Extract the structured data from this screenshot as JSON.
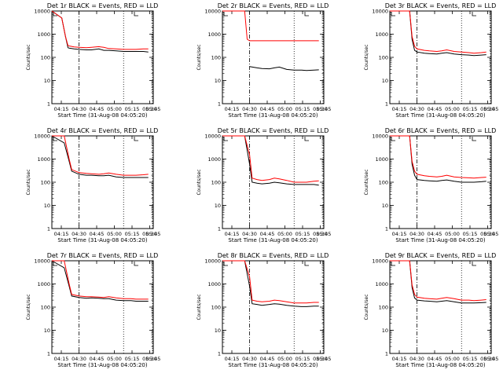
{
  "chart_data": [
    {
      "type": "line",
      "title": "Det 1r BLACK = Events, RED = LLD",
      "xlabel": "Start Time (31-Aug-08 04:05:20)",
      "ylabel": "Counts/sec",
      "yscale": "log",
      "ylim": [
        1,
        10000
      ],
      "ytick_labels": [
        "1",
        "10",
        "100",
        "1000",
        "10000"
      ],
      "xtick_labels": [
        "04:15",
        "04:30",
        "04:45",
        "05:00",
        "05:15",
        "05:30",
        "05:45"
      ],
      "xrange_minutes": [
        4,
        45
      ],
      "markers": {
        "dashdot": 15,
        "dotted": [
          33,
          45
        ]
      },
      "series": [
        {
          "color": "#000000",
          "spike": [
            4,
            10000,
            8,
            5000,
            9.5,
            800,
            10.5,
            260
          ],
          "x": [
            11,
            13,
            15,
            18,
            20,
            23,
            25,
            27,
            30,
            33,
            36,
            38,
            41,
            43
          ],
          "y": [
            250,
            230,
            220,
            210,
            210,
            230,
            200,
            200,
            190,
            180,
            180,
            180,
            180,
            170
          ]
        },
        {
          "color": "#ff0000",
          "spike": [
            4,
            10000,
            8,
            5000,
            9.5,
            800,
            10.5,
            320
          ],
          "x": [
            11,
            13,
            15,
            18,
            20,
            23,
            25,
            27,
            30,
            33,
            36,
            38,
            41,
            43
          ],
          "y": [
            310,
            280,
            270,
            260,
            270,
            290,
            270,
            240,
            230,
            220,
            220,
            220,
            230,
            230
          ]
        }
      ]
    },
    {
      "type": "line",
      "title": "Det 2r BLACK = Events, RED = LLD",
      "xlabel": "Start Time (31-Aug-08 04:05:20)",
      "ylabel": "Counts/sec",
      "yscale": "log",
      "ylim": [
        1,
        10000
      ],
      "ytick_labels": [
        "1",
        "10",
        "100",
        "1000",
        "10000"
      ],
      "xtick_labels": [
        "04:15",
        "04:30",
        "04:45",
        "05:00",
        "05:15",
        "05:30",
        "05:45"
      ],
      "xrange_minutes": [
        4,
        45
      ],
      "markers": {
        "dashdot": 15,
        "dotted": [
          33,
          45
        ]
      },
      "series": [
        {
          "color": "#000000",
          "spike": [],
          "x": [
            15,
            18,
            20,
            23,
            25,
            27,
            30,
            33,
            36,
            38,
            41,
            43
          ],
          "y": [
            40,
            35,
            33,
            32,
            35,
            38,
            30,
            28,
            28,
            27,
            28,
            29
          ]
        },
        {
          "color": "#ff0000",
          "spike": [
            4,
            10000,
            12,
            10000,
            13,
            10000,
            14,
            600
          ],
          "x": [
            15,
            18,
            20,
            23,
            25,
            27,
            30,
            33,
            36,
            38,
            41,
            43
          ],
          "y": [
            520,
            520,
            520,
            520,
            520,
            520,
            520,
            520,
            520,
            520,
            520,
            520
          ]
        }
      ]
    },
    {
      "type": "line",
      "title": "Det 3r BLACK = Events, RED = LLD",
      "xlabel": "Start Time (31-Aug-08 04:05:20)",
      "ylabel": "Counts/sec",
      "yscale": "log",
      "ylim": [
        1,
        10000
      ],
      "ytick_labels": [
        "1",
        "10",
        "100",
        "1000",
        "10000"
      ],
      "xtick_labels": [
        "04:15",
        "04:30",
        "04:45",
        "05:00",
        "05:15",
        "05:30",
        "05:45"
      ],
      "xrange_minutes": [
        4,
        45
      ],
      "markers": {
        "dashdot": 15,
        "dotted": [
          33,
          45
        ]
      },
      "series": [
        {
          "color": "#000000",
          "spike": [
            4,
            10000,
            10,
            10000,
            12,
            10000,
            13,
            600,
            14,
            200
          ],
          "x": [
            15,
            18,
            20,
            23,
            25,
            27,
            30,
            33,
            36,
            38,
            41,
            43
          ],
          "y": [
            170,
            150,
            145,
            140,
            150,
            160,
            140,
            130,
            125,
            120,
            125,
            130
          ]
        },
        {
          "color": "#ff0000",
          "spike": [
            4,
            10000,
            10,
            10000,
            12,
            10000,
            13,
            800,
            14,
            300
          ],
          "x": [
            15,
            18,
            20,
            23,
            25,
            27,
            30,
            33,
            36,
            38,
            41,
            43
          ],
          "y": [
            230,
            200,
            190,
            180,
            190,
            210,
            180,
            170,
            160,
            150,
            160,
            170
          ]
        }
      ]
    },
    {
      "type": "line",
      "title": "Det 4r BLACK = Events, RED = LLD",
      "xlabel": "Start Time (31-Aug-08 04:05:20)",
      "ylabel": "Counts/sec",
      "yscale": "log",
      "ylim": [
        1,
        10000
      ],
      "ytick_labels": [
        "1",
        "10",
        "100",
        "1000",
        "10000"
      ],
      "xtick_labels": [
        "04:15",
        "04:30",
        "04:45",
        "05:00",
        "05:15",
        "05:30",
        "05:45"
      ],
      "xrange_minutes": [
        4,
        45
      ],
      "markers": {
        "dashdot": 15,
        "dotted": [
          33,
          45
        ]
      },
      "series": [
        {
          "color": "#000000",
          "spike": [
            4,
            10000,
            9,
            5000,
            11,
            800,
            12,
            300
          ],
          "x": [
            15,
            18,
            20,
            23,
            25,
            27,
            30,
            33,
            36,
            38,
            41,
            43
          ],
          "y": [
            220,
            200,
            200,
            190,
            190,
            200,
            170,
            160,
            160,
            160,
            160,
            160
          ]
        },
        {
          "color": "#ff0000",
          "spike": [
            4,
            10000,
            9,
            10000,
            11,
            1000,
            12,
            350
          ],
          "x": [
            15,
            18,
            20,
            23,
            25,
            27,
            30,
            33,
            36,
            38,
            41,
            43
          ],
          "y": [
            260,
            240,
            230,
            220,
            230,
            250,
            220,
            200,
            200,
            200,
            210,
            220
          ]
        }
      ]
    },
    {
      "type": "line",
      "title": "Det 5r BLACK = Events, RED = LLD",
      "xlabel": "Start Time (31-Aug-08 04:05:20)",
      "ylabel": "Counts/sec",
      "yscale": "log",
      "ylim": [
        1,
        10000
      ],
      "ytick_labels": [
        "1",
        "10",
        "100",
        "1000",
        "10000"
      ],
      "xtick_labels": [
        "04:15",
        "04:30",
        "04:45",
        "05:00",
        "05:15",
        "05:30",
        "05:45"
      ],
      "xrange_minutes": [
        4,
        45
      ],
      "markers": {
        "dashdot": 15,
        "dotted": [
          33,
          45
        ]
      },
      "series": [
        {
          "color": "#000000",
          "spike": [
            4,
            10000,
            13,
            10000,
            15,
            600
          ],
          "x": [
            16,
            18,
            20,
            23,
            25,
            27,
            30,
            33,
            36,
            38,
            41,
            43
          ],
          "y": [
            100,
            90,
            85,
            90,
            100,
            95,
            85,
            80,
            80,
            80,
            80,
            75
          ]
        },
        {
          "color": "#ff0000",
          "spike": [
            4,
            10000,
            13,
            10000,
            15,
            1500
          ],
          "x": [
            16,
            18,
            20,
            23,
            25,
            27,
            30,
            33,
            36,
            38,
            41,
            43
          ],
          "y": [
            150,
            130,
            120,
            130,
            150,
            140,
            120,
            100,
            100,
            100,
            110,
            115
          ]
        }
      ]
    },
    {
      "type": "line",
      "title": "Det 6r BLACK = Events, RED = LLD",
      "xlabel": "Start Time (31-Aug-08 04:05:20)",
      "ylabel": "Counts/sec",
      "yscale": "log",
      "ylim": [
        1,
        10000
      ],
      "ytick_labels": [
        "1",
        "10",
        "100",
        "1000",
        "10000"
      ],
      "xtick_labels": [
        "04:15",
        "04:30",
        "04:45",
        "05:00",
        "05:15",
        "05:30",
        "05:45"
      ],
      "xrange_minutes": [
        4,
        45
      ],
      "markers": {
        "dashdot": 15,
        "dotted": [
          33,
          45
        ]
      },
      "series": [
        {
          "color": "#000000",
          "spike": [
            4,
            10000,
            10,
            10000,
            12,
            10000,
            13,
            600,
            14,
            200
          ],
          "x": [
            15,
            18,
            20,
            23,
            25,
            27,
            30,
            33,
            36,
            38,
            41,
            43
          ],
          "y": [
            130,
            120,
            115,
            110,
            120,
            125,
            110,
            100,
            100,
            100,
            105,
            110
          ]
        },
        {
          "color": "#ff0000",
          "spike": [
            4,
            10000,
            10,
            10000,
            12,
            10000,
            13,
            800,
            14,
            300
          ],
          "x": [
            15,
            18,
            20,
            23,
            25,
            27,
            30,
            33,
            36,
            38,
            41,
            43
          ],
          "y": [
            220,
            190,
            180,
            170,
            180,
            200,
            170,
            160,
            155,
            150,
            160,
            165
          ]
        }
      ]
    },
    {
      "type": "line",
      "title": "Det 7r BLACK = Events, RED = LLD",
      "xlabel": "Start Time (31-Aug-08 04:05:20)",
      "ylabel": "Counts/sec",
      "yscale": "log",
      "ylim": [
        1,
        10000
      ],
      "ytick_labels": [
        "1",
        "10",
        "100",
        "1000",
        "10000"
      ],
      "xtick_labels": [
        "04:15",
        "04:30",
        "04:45",
        "05:00",
        "05:15",
        "05:30",
        "05:45"
      ],
      "xrange_minutes": [
        4,
        45
      ],
      "markers": {
        "dashdot": 15,
        "dotted": [
          33,
          45
        ]
      },
      "series": [
        {
          "color": "#000000",
          "spike": [
            4,
            10000,
            9,
            5000,
            11,
            800,
            12,
            300
          ],
          "x": [
            15,
            18,
            20,
            23,
            25,
            27,
            30,
            33,
            36,
            38,
            41,
            43
          ],
          "y": [
            260,
            240,
            250,
            240,
            230,
            230,
            200,
            190,
            190,
            180,
            180,
            180
          ]
        },
        {
          "color": "#ff0000",
          "spike": [
            4,
            10000,
            9,
            10000,
            11,
            1000,
            12,
            350
          ],
          "x": [
            15,
            18,
            20,
            23,
            25,
            27,
            30,
            33,
            36,
            38,
            41,
            43
          ],
          "y": [
            300,
            280,
            280,
            270,
            260,
            280,
            250,
            230,
            230,
            220,
            220,
            220
          ]
        }
      ]
    },
    {
      "type": "line",
      "title": "Det 8r BLACK = Events, RED = LLD",
      "xlabel": "Start Time (31-Aug-08 04:05:20)",
      "ylabel": "Counts/sec",
      "yscale": "log",
      "ylim": [
        1,
        10000
      ],
      "ytick_labels": [
        "1",
        "10",
        "100",
        "1000",
        "10000"
      ],
      "xtick_labels": [
        "04:15",
        "04:30",
        "04:45",
        "05:00",
        "05:15",
        "05:30",
        "05:45"
      ],
      "xrange_minutes": [
        4,
        45
      ],
      "markers": {
        "dashdot": 15,
        "dotted": [
          33,
          45
        ]
      },
      "series": [
        {
          "color": "#000000",
          "spike": [
            4,
            10000,
            13,
            10000,
            15,
            800
          ],
          "x": [
            16,
            18,
            20,
            23,
            25,
            27,
            30,
            33,
            36,
            38,
            41,
            43
          ],
          "y": [
            140,
            130,
            120,
            130,
            140,
            135,
            120,
            110,
            105,
            105,
            110,
            110
          ]
        },
        {
          "color": "#ff0000",
          "spike": [
            4,
            10000,
            13,
            10000,
            15,
            2000
          ],
          "x": [
            16,
            18,
            20,
            23,
            25,
            27,
            30,
            33,
            36,
            38,
            41,
            43
          ],
          "y": [
            200,
            180,
            170,
            180,
            200,
            190,
            170,
            150,
            150,
            150,
            160,
            160
          ]
        }
      ]
    },
    {
      "type": "line",
      "title": "Det 9r BLACK = Events, RED = LLD",
      "xlabel": "Start Time (31-Aug-08 04:05:20)",
      "ylabel": "Counts/sec",
      "yscale": "log",
      "ylim": [
        1,
        10000
      ],
      "ytick_labels": [
        "1",
        "10",
        "100",
        "1000",
        "10000"
      ],
      "xtick_labels": [
        "04:15",
        "04:30",
        "04:45",
        "05:00",
        "05:15",
        "05:30",
        "05:45"
      ],
      "xrange_minutes": [
        4,
        45
      ],
      "markers": {
        "dashdot": 15,
        "dotted": [
          33,
          45
        ]
      },
      "series": [
        {
          "color": "#000000",
          "spike": [
            4,
            10000,
            10,
            10000,
            12,
            10000,
            13,
            700,
            14,
            250
          ],
          "x": [
            15,
            18,
            20,
            23,
            25,
            27,
            30,
            33,
            36,
            38,
            41,
            43
          ],
          "y": [
            200,
            185,
            180,
            170,
            180,
            190,
            170,
            150,
            150,
            150,
            155,
            160
          ]
        },
        {
          "color": "#ff0000",
          "spike": [
            4,
            10000,
            10,
            10000,
            12,
            10000,
            13,
            900,
            14,
            350
          ],
          "x": [
            15,
            18,
            20,
            23,
            25,
            27,
            30,
            33,
            36,
            38,
            41,
            43
          ],
          "y": [
            270,
            240,
            230,
            220,
            240,
            260,
            230,
            200,
            200,
            190,
            200,
            210
          ]
        }
      ]
    }
  ]
}
